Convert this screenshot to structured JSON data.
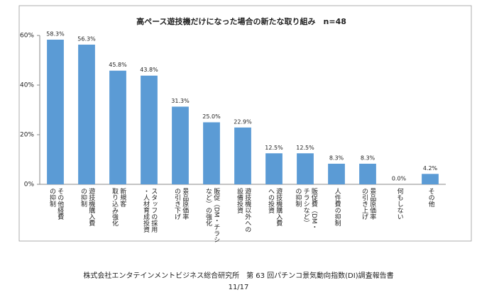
{
  "chart_data": {
    "type": "bar",
    "title": "高ペース遊技機だけになった場合の新たな取り組み　n=48",
    "categories": [
      "その他経費\nの抑制",
      "遊技機購入費\nの抑制",
      "新規客\n取り込み強化",
      "スタッフの採用\n・人材育成投資",
      "景品原価率\nの引き下げ",
      "販促（DM・チラシ\nなど）の強化",
      "遊技機以外への\n設備投資",
      "遊技機購入費\nへの投資",
      "販促費（DM・\nチラシなど）\nの抑制",
      "人件費の抑制",
      "景品原価率\nの引き上げ",
      "何もしない",
      "その他"
    ],
    "values": [
      58.3,
      56.3,
      45.8,
      43.8,
      31.3,
      25.0,
      22.9,
      12.5,
      12.5,
      8.3,
      8.3,
      0.0,
      4.2
    ],
    "value_labels": [
      "58.3%",
      "56.3%",
      "45.8%",
      "43.8%",
      "31.3%",
      "25.0%",
      "22.9%",
      "12.5%",
      "12.5%",
      "8.3%",
      "8.3%",
      "0.0%",
      "4.2%"
    ],
    "color": "#5b9bd5",
    "ylim": [
      0,
      60
    ],
    "yticks": [
      {
        "value": 0,
        "label": "0%"
      },
      {
        "value": 20,
        "label": "20%"
      },
      {
        "value": 40,
        "label": "40%"
      },
      {
        "value": 60,
        "label": "60%"
      }
    ],
    "grid": false
  },
  "footer": {
    "text": "株式会社エンタテインメントビジネス総合研究所　第 63 回パチンコ景気動向指数(DI)調査報告書",
    "page": "11/17"
  }
}
